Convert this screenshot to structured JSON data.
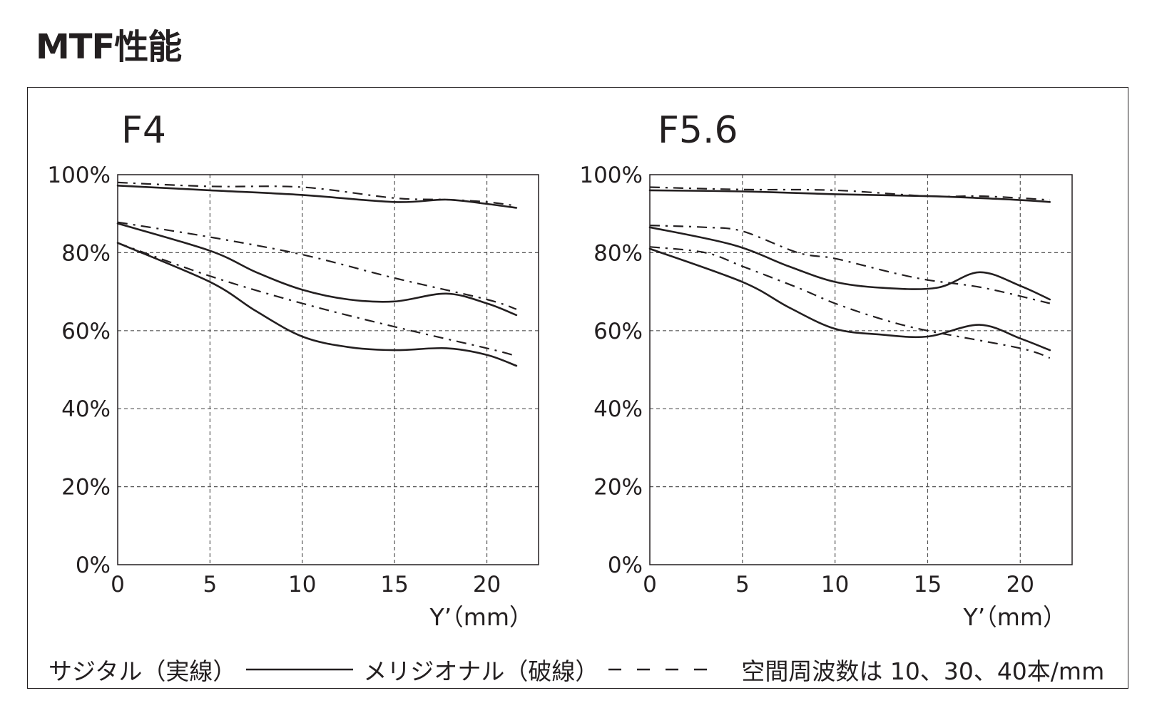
{
  "page": {
    "title": "MTF性能"
  },
  "legend": {
    "sagittal_label": "サジタル（実線）",
    "meridional_label": "メリジオナル（破線）",
    "note": "空間周波数は 10、30、40本/mm"
  },
  "chart_data": [
    {
      "type": "line",
      "title": "F4",
      "xlabel": "Y’（mm）",
      "ylabel": "",
      "xlim": [
        0,
        22.8
      ],
      "ylim": [
        0,
        100
      ],
      "x_ticks": [
        "0",
        "5",
        "10",
        "15",
        "20"
      ],
      "y_ticks": [
        "0%",
        "20%",
        "40%",
        "60%",
        "80%",
        "100%"
      ],
      "grid": true,
      "series": [
        {
          "style": "solid",
          "x": [
            0,
            5,
            10,
            15,
            17.8,
            20,
            21.6
          ],
          "y": [
            97.2,
            96.0,
            94.8,
            93.0,
            93.6,
            92.5,
            91.5
          ]
        },
        {
          "style": "dashed",
          "x": [
            0,
            5,
            10,
            15,
            17.8,
            20,
            21.6
          ],
          "y": [
            98.0,
            97.0,
            96.8,
            94.0,
            93.6,
            93.0,
            92.0
          ]
        },
        {
          "style": "solid",
          "x": [
            0,
            5,
            7.5,
            10,
            12.5,
            15,
            17.8,
            20,
            21.6
          ],
          "y": [
            87.5,
            80.5,
            75.0,
            70.5,
            68.0,
            67.5,
            69.5,
            67.0,
            64.0
          ]
        },
        {
          "style": "dashed",
          "x": [
            0,
            5,
            10,
            15,
            20,
            21.6
          ],
          "y": [
            87.8,
            84.0,
            79.5,
            73.5,
            68.0,
            65.5
          ]
        },
        {
          "style": "solid",
          "x": [
            0,
            5,
            7.5,
            10,
            12.5,
            15,
            17.8,
            20,
            21.6
          ],
          "y": [
            82.5,
            72.5,
            65.0,
            58.5,
            55.8,
            55.0,
            55.5,
            53.8,
            51.0
          ]
        },
        {
          "style": "dashed",
          "x": [
            0,
            5,
            10,
            15,
            20,
            21.6
          ],
          "y": [
            82.5,
            74.0,
            67.0,
            61.0,
            55.5,
            53.5
          ]
        }
      ]
    },
    {
      "type": "line",
      "title": "F5.6",
      "xlabel": "Y’（mm）",
      "ylabel": "",
      "xlim": [
        0,
        22.8
      ],
      "ylim": [
        0,
        100
      ],
      "x_ticks": [
        "0",
        "5",
        "10",
        "15",
        "20"
      ],
      "y_ticks": [
        "0%",
        "20%",
        "40%",
        "60%",
        "80%",
        "100%"
      ],
      "grid": true,
      "series": [
        {
          "style": "solid",
          "x": [
            0,
            5,
            10,
            15,
            17.8,
            20,
            21.6
          ],
          "y": [
            96.0,
            95.7,
            95.0,
            94.5,
            94.0,
            93.5,
            93.0
          ]
        },
        {
          "style": "dashed",
          "x": [
            0,
            5,
            10,
            15,
            17.8,
            20,
            21.6
          ],
          "y": [
            96.8,
            96.2,
            96.0,
            94.5,
            94.5,
            94.0,
            93.5
          ]
        },
        {
          "style": "solid",
          "x": [
            0,
            4.5,
            7.5,
            10,
            12.5,
            15.5,
            17.8,
            20,
            21.6
          ],
          "y": [
            86.5,
            82.0,
            76.5,
            72.5,
            71.0,
            71.0,
            75.0,
            71.5,
            68.0
          ]
        },
        {
          "style": "dashed",
          "x": [
            0,
            3,
            5,
            8,
            10,
            13,
            15,
            18,
            21.6
          ],
          "y": [
            87.0,
            86.5,
            85.5,
            80.0,
            78.5,
            75.0,
            73.0,
            71.0,
            67.0
          ]
        },
        {
          "style": "solid",
          "x": [
            0,
            5,
            7.5,
            10,
            12.5,
            15,
            17.8,
            20,
            21.6
          ],
          "y": [
            81.0,
            72.5,
            66.0,
            60.5,
            59.0,
            58.5,
            61.5,
            58.0,
            55.0
          ]
        },
        {
          "style": "dashed",
          "x": [
            0,
            3,
            5,
            8,
            10,
            12.5,
            15,
            20,
            21.6
          ],
          "y": [
            81.5,
            80.0,
            76.5,
            71.0,
            67.0,
            63.0,
            60.0,
            55.5,
            53.0
          ]
        }
      ]
    }
  ]
}
